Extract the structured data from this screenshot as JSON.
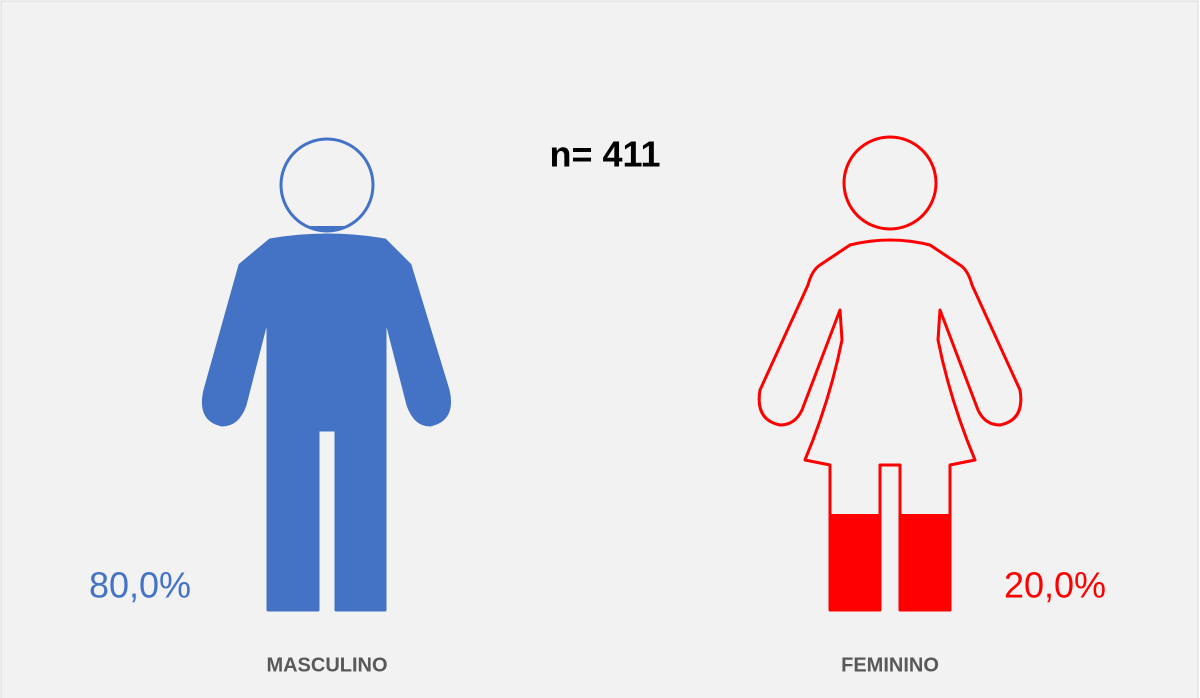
{
  "chart_data": {
    "type": "pictograph",
    "title": "n= 411",
    "categories": [
      "MASCULINO",
      "FEMININO"
    ],
    "values": [
      80,
      20
    ],
    "value_labels": [
      "80,0%",
      "20,0%"
    ],
    "colors": [
      "#4472c4",
      "#ff0000"
    ],
    "ylim": [
      0,
      100
    ]
  }
}
